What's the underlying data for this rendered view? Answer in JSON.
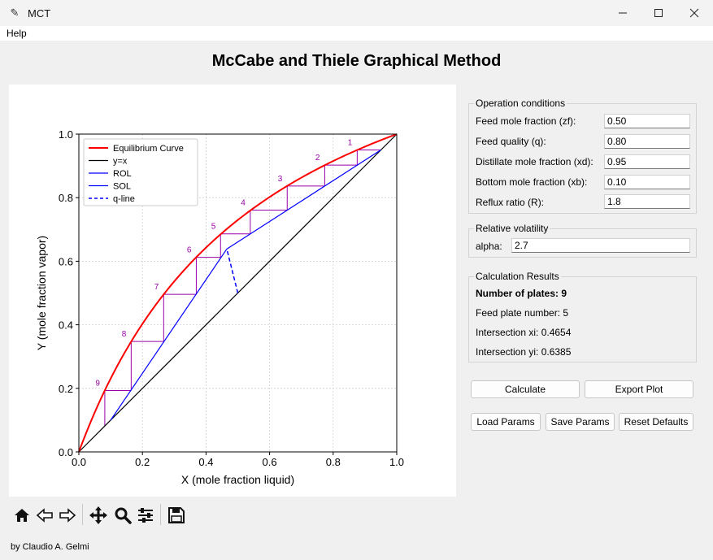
{
  "window": {
    "title": "MCT"
  },
  "menu": {
    "help_label": "Help"
  },
  "page": {
    "title": "McCabe and Thiele Graphical Method",
    "footer": "by Claudio A. Gelmi"
  },
  "operation": {
    "title": "Operation conditions",
    "fields": [
      {
        "label": "Feed mole fraction (zf):",
        "value": "0.50"
      },
      {
        "label": "Feed quality (q):",
        "value": "0.80"
      },
      {
        "label": "Distillate mole fraction (xd):",
        "value": "0.95"
      },
      {
        "label": "Bottom mole fraction (xb):",
        "value": "0.10"
      },
      {
        "label": "Reflux ratio (R):",
        "value": "1.8"
      }
    ]
  },
  "volatility": {
    "title": "Relative volatility",
    "label": "alpha:",
    "value": "2.7"
  },
  "results": {
    "title": "Calculation Results",
    "plates": "Number of plates: 9",
    "feed_plate": "Feed plate number: 5",
    "xi": "Intersection xi: 0.4654",
    "yi": "Intersection yi: 0.6385"
  },
  "buttons": {
    "calculate": "Calculate",
    "export": "Export Plot",
    "load": "Load Params",
    "save": "Save Params",
    "reset": "Reset Defaults"
  },
  "toolbar": [
    "home-icon",
    "back-icon",
    "forward-icon",
    "pan-icon",
    "zoom-icon",
    "configure-icon",
    "save-icon"
  ],
  "chart_data": {
    "type": "line",
    "xlabel": "X (mole fraction liquid)",
    "ylabel": "Y (mole fraction vapor)",
    "xlim": [
      0,
      1
    ],
    "ylim": [
      0,
      1
    ],
    "xticks": [
      "0.0",
      "0.2",
      "0.4",
      "0.6",
      "0.8",
      "1.0"
    ],
    "yticks": [
      "0.0",
      "0.2",
      "0.4",
      "0.6",
      "0.8",
      "1.0"
    ],
    "grid": true,
    "legend_position": "top-left",
    "legend": [
      "Equilibrium Curve",
      "y=x",
      "ROL",
      "SOL",
      "q-line"
    ],
    "alpha": 2.7,
    "rol": [
      [
        0.4654,
        0.6385
      ],
      [
        0.95,
        0.95
      ]
    ],
    "sol": [
      [
        0.1,
        0.1
      ],
      [
        0.4654,
        0.6385
      ]
    ],
    "q_line": [
      [
        0.5,
        0.5
      ],
      [
        0.4654,
        0.6385
      ]
    ],
    "steps": [
      {
        "label": "1",
        "x": 0.8756,
        "y": 0.95
      },
      {
        "label": "2",
        "x": 0.7734,
        "y": 0.9024
      },
      {
        "label": "3",
        "x": 0.6554,
        "y": 0.8367
      },
      {
        "label": "4",
        "x": 0.5393,
        "y": 0.7608
      },
      {
        "label": "5",
        "x": 0.4457,
        "y": 0.6862
      },
      {
        "label": "6",
        "x": 0.3694,
        "y": 0.6122
      },
      {
        "label": "7",
        "x": 0.2668,
        "y": 0.4958
      },
      {
        "label": "8",
        "x": 0.1646,
        "y": 0.3475
      },
      {
        "label": "9",
        "x": 0.0816,
        "y": 0.1932
      }
    ],
    "colors": {
      "equilibrium": "#ff0000",
      "diagonal": "#000000",
      "rol": "#0000ff",
      "sol": "#0000ff",
      "q_line": "#0000ff",
      "steps": "#9900aa"
    }
  }
}
